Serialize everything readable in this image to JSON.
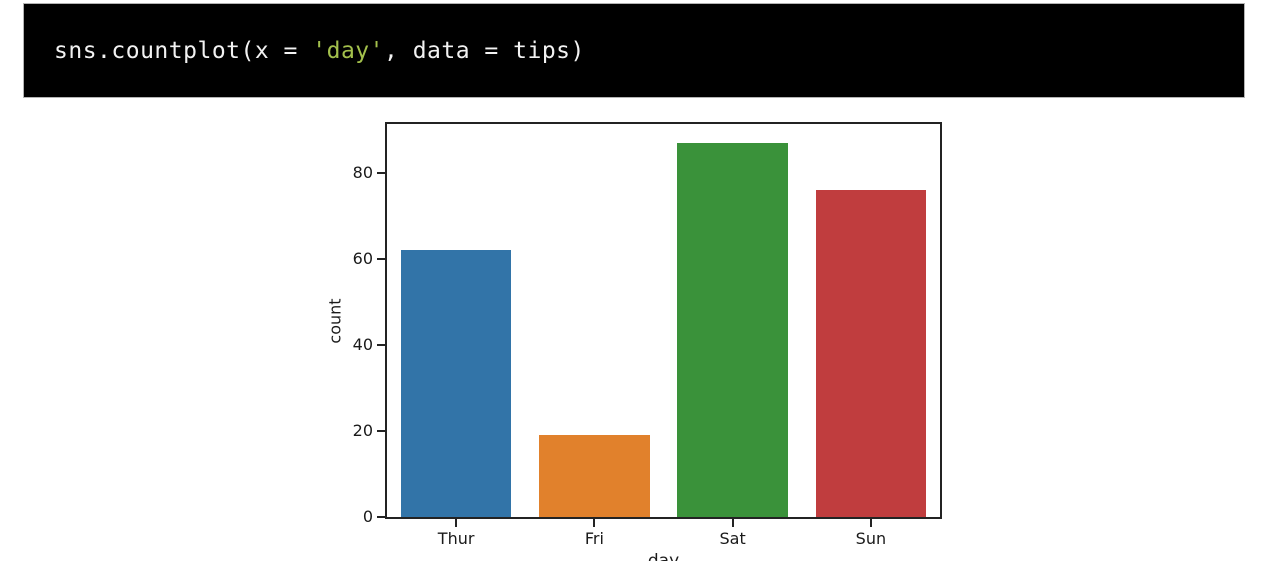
{
  "code_cell": {
    "text_before": "sns.countplot(x = ",
    "string_literal": "'day'",
    "text_after": ", data = tips)",
    "text_color": "#f2f2f2",
    "string_color": "#a3c04c",
    "background": "#000000"
  },
  "chart_data": {
    "type": "bar",
    "title": "",
    "categories": [
      "Thur",
      "Fri",
      "Sat",
      "Sun"
    ],
    "values": [
      62,
      19,
      87,
      76
    ],
    "bar_colors": [
      "#3274a8",
      "#e1812c",
      "#3a923a",
      "#c03d3e"
    ],
    "xlabel": "day",
    "ylabel": "count",
    "ylim": [
      0,
      91.35
    ],
    "yticks": [
      0,
      20,
      40,
      60,
      80
    ],
    "grid": false,
    "legend": "none",
    "bar_width_ratio": 0.8
  }
}
